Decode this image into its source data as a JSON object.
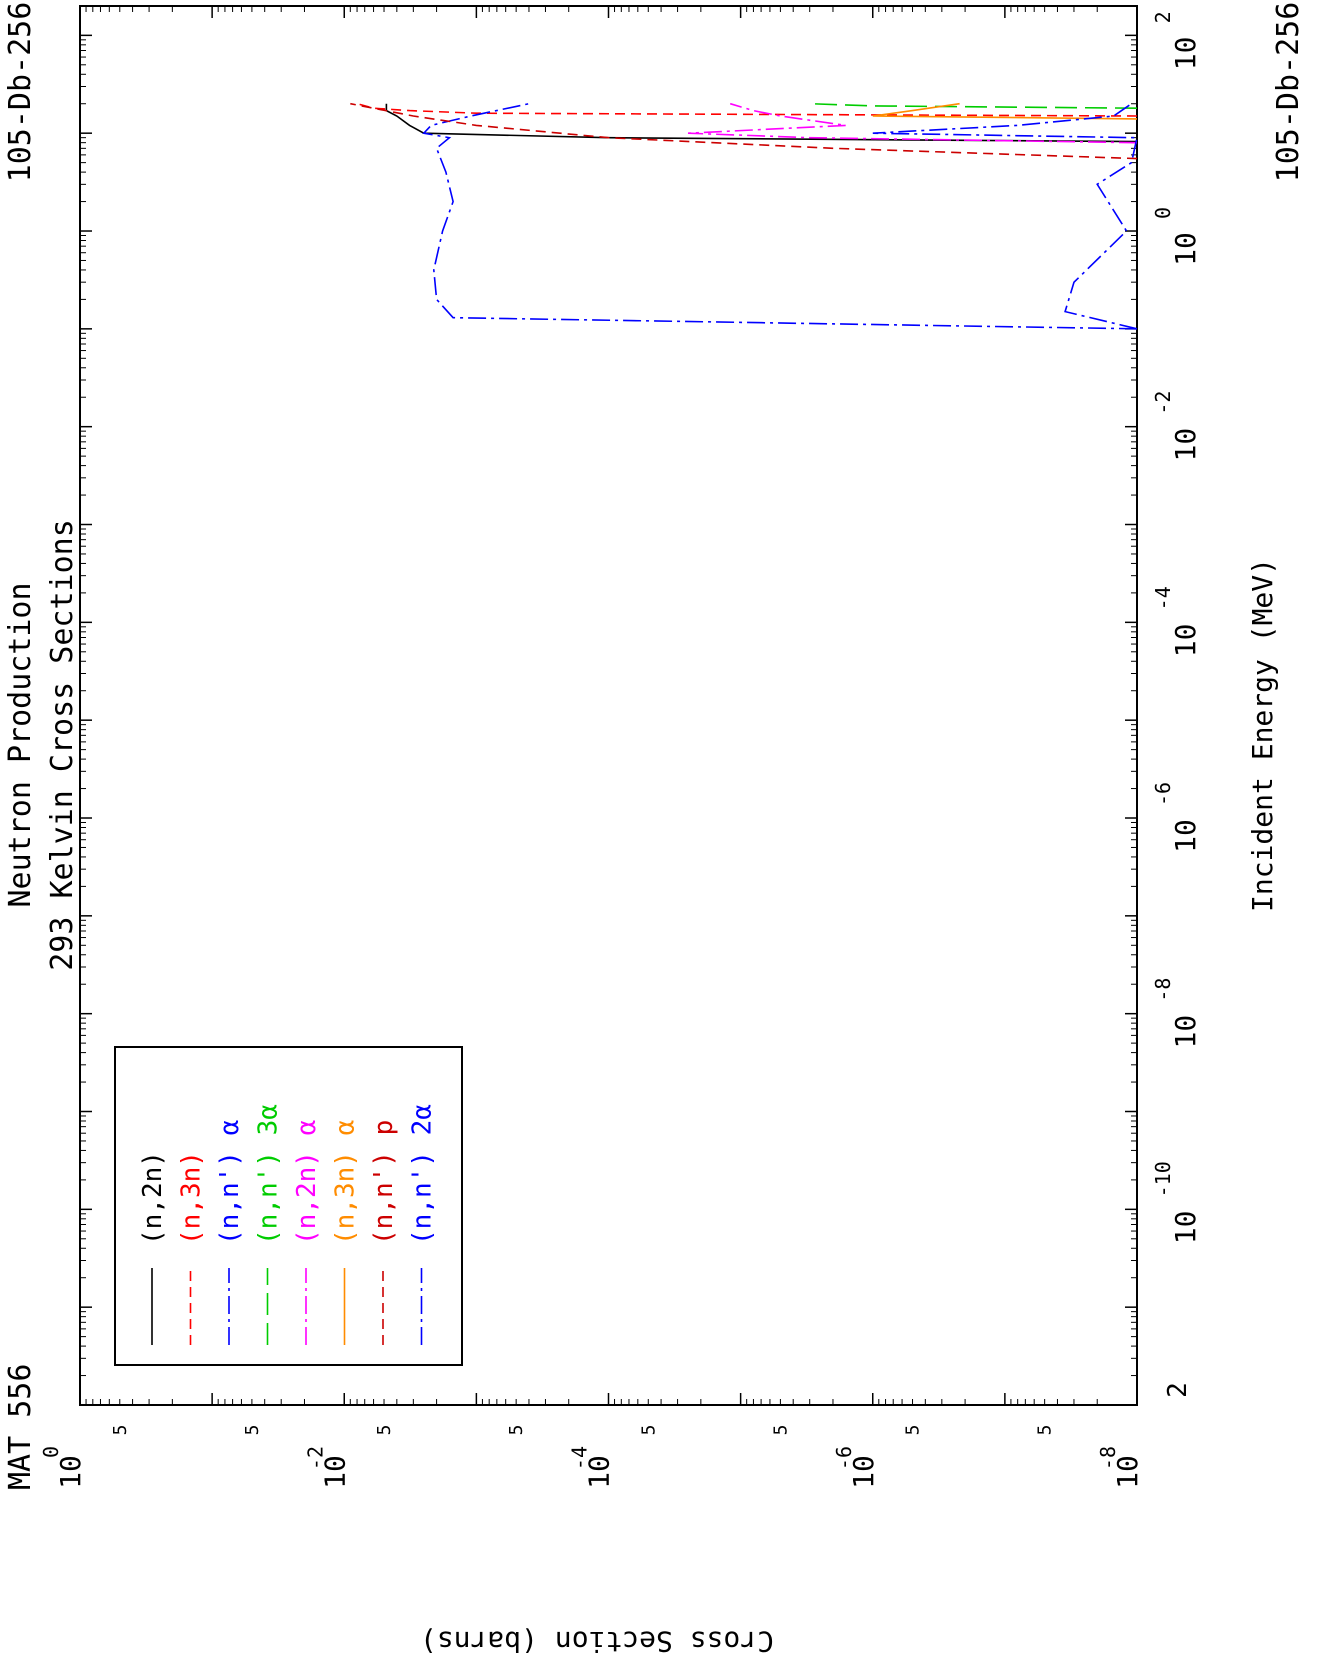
{
  "header": {
    "mat": "MAT 556",
    "title_line1": "Neutron Production",
    "title_line2": "293 Kelvin Cross Sections",
    "material_top": "105-Db-256",
    "material_bottom": "105-Db-256"
  },
  "chart_data": {
    "type": "line",
    "orientation": "rotated-90",
    "title": "Neutron Production",
    "subtitle": "293 Kelvin Cross Sections",
    "xlabel": "Incident Energy (MeV)",
    "ylabel": "Cross Section (barns)",
    "xscale": "log",
    "yscale": "log",
    "xlim": [
      2e-12,
      200
    ],
    "ylim": [
      1e-08,
      1
    ],
    "x_tick_labels": [
      {
        "base": "10",
        "exp": "-10",
        "value": 1e-10
      },
      {
        "base": "10",
        "exp": "-8",
        "value": 1e-08
      },
      {
        "base": "10",
        "exp": "-6",
        "value": 1e-06
      },
      {
        "base": "10",
        "exp": "-4",
        "value": 0.0001
      },
      {
        "base": "10",
        "exp": "-2",
        "value": 0.01
      },
      {
        "base": "10",
        "exp": "0",
        "value": 1
      },
      {
        "base": "10",
        "exp": "2",
        "value": 100
      }
    ],
    "x_start_label": "2",
    "y_tick_labels": [
      {
        "base": "10",
        "exp": "0",
        "value": 1
      },
      {
        "base": "10",
        "exp": "-2",
        "value": 0.01
      },
      {
        "base": "10",
        "exp": "-4",
        "value": 0.0001
      },
      {
        "base": "10",
        "exp": "-6",
        "value": 1e-06
      },
      {
        "base": "10",
        "exp": "-8",
        "value": 1e-08
      }
    ],
    "y_minor_label": "5",
    "legend_placement": "bottom-left",
    "series": [
      {
        "name": "(n,2n)",
        "color": "#000000",
        "dash": "solid",
        "points": [
          [
            8.2,
            1e-08
          ],
          [
            9.0,
            0.0001
          ],
          [
            10.0,
            0.0025
          ],
          [
            12.0,
            0.0032
          ],
          [
            15.0,
            0.004
          ],
          [
            17.0,
            0.0048
          ],
          [
            20.0,
            0.0048
          ]
        ]
      },
      {
        "name": "(n,3n)",
        "color": "#ff0000",
        "dash": "dash",
        "points": [
          [
            15.0,
            1e-08
          ],
          [
            16.0,
            0.001
          ],
          [
            17.0,
            0.0032
          ],
          [
            18.0,
            0.006
          ],
          [
            20.0,
            0.008
          ]
        ]
      },
      {
        "name": "(n,n') α",
        "color": "#0000ff",
        "dash": "dashdot",
        "points": [
          [
            0.1,
            1e-08
          ],
          [
            0.13,
            0.0015
          ],
          [
            0.2,
            0.002
          ],
          [
            0.4,
            0.0021
          ],
          [
            1.0,
            0.0018
          ],
          [
            2.0,
            0.0015
          ],
          [
            4.0,
            0.0017
          ],
          [
            7.0,
            0.002
          ],
          [
            9.0,
            0.0016
          ],
          [
            10.0,
            0.0025
          ],
          [
            12.0,
            0.0022
          ],
          [
            15.0,
            0.0011
          ],
          [
            20.0,
            0.0004
          ]
        ]
      },
      {
        "name": "(n,n') 3α",
        "color": "#00cc00",
        "dash": "longdash",
        "points": [
          [
            18.0,
            1e-08
          ],
          [
            19.0,
            1e-06
          ],
          [
            20.0,
            3e-06
          ]
        ]
      },
      {
        "name": "(n,2n) α",
        "color": "#ff00ff",
        "dash": "dashdot",
        "points": [
          [
            8.0,
            1e-08
          ],
          [
            9.0,
            3e-06
          ],
          [
            10.0,
            2.5e-05
          ],
          [
            12.0,
            1.6e-06
          ],
          [
            15.0,
            5e-06
          ],
          [
            17.0,
            8e-06
          ],
          [
            20.0,
            1.2e-05
          ]
        ]
      },
      {
        "name": "(n,3n) α",
        "color": "#ff8c00",
        "dash": "solid",
        "points": [
          [
            14.0,
            1e-08
          ],
          [
            15.0,
            1e-06
          ],
          [
            17.0,
            5e-07
          ],
          [
            20.0,
            2.2e-07
          ]
        ]
      },
      {
        "name": "(n,n') p",
        "color": "#cc0000",
        "dash": "dash",
        "points": [
          [
            5.5,
            1e-08
          ],
          [
            7.0,
            2e-06
          ],
          [
            9.0,
            0.0001
          ],
          [
            12.0,
            0.001
          ],
          [
            15.0,
            0.003
          ],
          [
            20.0,
            0.009
          ]
        ]
      },
      {
        "name": "(n,n') 2α",
        "color": "#0000ff",
        "dash": "dashdot",
        "points": [
          [
            0.1,
            1e-08
          ],
          [
            0.15,
            3.5e-08
          ],
          [
            0.3,
            3e-08
          ],
          [
            1.0,
            1.2e-08
          ],
          [
            3.0,
            2e-08
          ],
          [
            5.0,
            1.1e-08
          ],
          [
            9.0,
            1e-08
          ],
          [
            10.0,
            1e-06
          ],
          [
            12.0,
            8e-08
          ],
          [
            15.0,
            1.5e-08
          ],
          [
            20.0,
            1.1e-08
          ]
        ]
      }
    ]
  }
}
